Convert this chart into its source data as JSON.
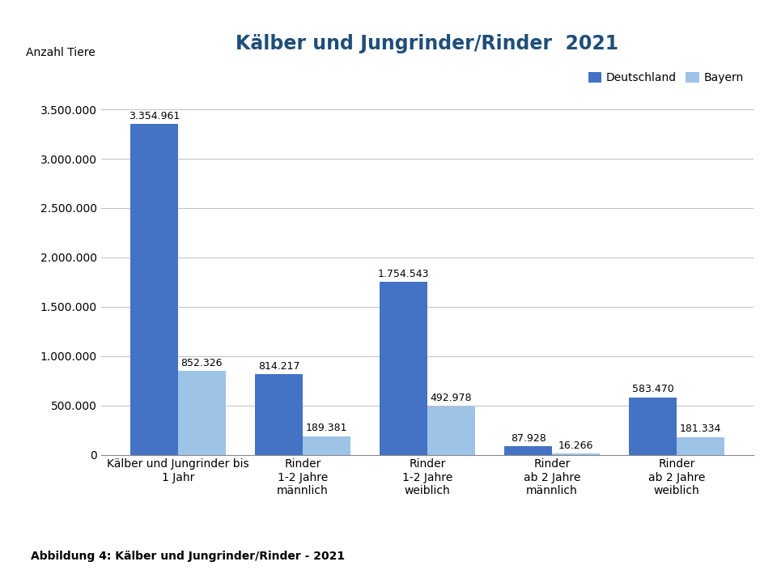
{
  "title": "Kälber und Jungrinder/Rinder  2021",
  "ylabel": "Anzahl Tiere",
  "caption": "Abbildung 4: Kälber und Jungrinder/Rinder - 2021",
  "categories": [
    "Kälber und Jungrinder bis\n1 Jahr",
    "Rinder\n1-2 Jahre\nmännlich",
    "Rinder\n1-2 Jahre\nweiblich",
    "Rinder\nab 2 Jahre\nmännlich",
    "Rinder\nab 2 Jahre\nweiblich"
  ],
  "deutschland": [
    3354961,
    814217,
    1754543,
    87928,
    583470
  ],
  "bayern": [
    852326,
    189381,
    492978,
    16266,
    181334
  ],
  "deutschland_labels": [
    "3.354.961",
    "814.217",
    "1.754.543",
    "87.928",
    "583.470"
  ],
  "bayern_labels": [
    "852.326",
    "189.381",
    "492.978",
    "16.266",
    "181.334"
  ],
  "color_deutschland": "#4472C4",
  "color_bayern": "#9DC3E6",
  "bar_width": 0.38,
  "ylim": [
    0,
    3900000
  ],
  "yticks": [
    0,
    500000,
    1000000,
    1500000,
    2000000,
    2500000,
    3000000,
    3500000
  ],
  "ytick_labels": [
    "0",
    "500.000",
    "1.000.000",
    "1.500.000",
    "2.000.000",
    "2.500.000",
    "3.000.000",
    "3.500.000"
  ],
  "title_color": "#1F4E79",
  "title_fontsize": 17,
  "legend_labels": [
    "Deutschland",
    "Bayern"
  ],
  "background_color": "#FFFFFF"
}
